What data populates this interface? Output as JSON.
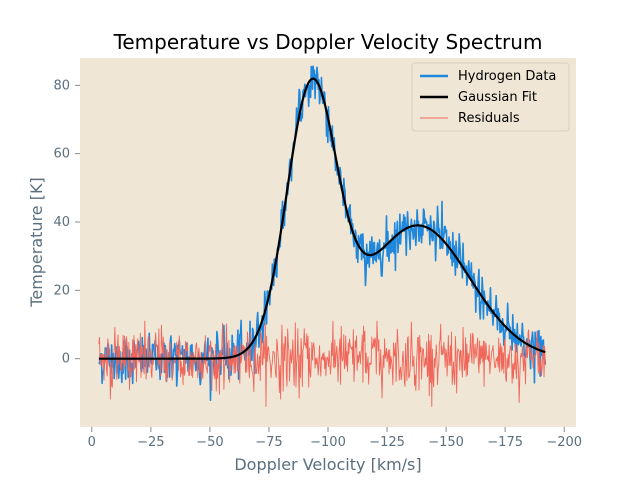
{
  "chart_data": {
    "type": "line",
    "title": "Temperature vs Doppler Velocity Spectrum",
    "xlabel": "Doppler Velocity [km/s]",
    "ylabel": "Temperature [K]",
    "x_axis_inverted": true,
    "xlim": [
      5,
      -205
    ],
    "ylim": [
      -20,
      88
    ],
    "x_ticks": [
      0,
      -25,
      -50,
      -75,
      -100,
      -125,
      -150,
      -175,
      -200
    ],
    "x_tick_labels": [
      "0",
      "−25",
      "−50",
      "−75",
      "−100",
      "−125",
      "−150",
      "−175",
      "−200"
    ],
    "y_ticks": [
      0,
      20,
      40,
      60,
      80
    ],
    "y_tick_labels": [
      "0",
      "20",
      "40",
      "60",
      "80"
    ],
    "x_range": [
      -3,
      -192
    ],
    "background_color": "#efe6d5",
    "grid": false,
    "legend_position": "upper right",
    "series": [
      {
        "name": "Hydrogen Data",
        "style": "noisy-line",
        "color": "#1f88dc",
        "noise_amplitude_K": 3.5,
        "model": "data = fitted two-gaussian profile + noise"
      },
      {
        "name": "Gaussian Fit",
        "style": "line",
        "color": "#000000",
        "components": [
          {
            "amplitude_K": 77,
            "center_kms": -93,
            "sigma_kms": 10.5
          },
          {
            "amplitude_K": 39,
            "center_kms": -138,
            "sigma_kms": 22
          }
        ],
        "peak_points": [
          {
            "x": -94,
            "y": 78
          },
          {
            "x": -116,
            "y": 28
          },
          {
            "x": -137,
            "y": 39.5
          }
        ]
      },
      {
        "name": "Residuals",
        "style": "thin-line",
        "color": "#f0665a",
        "noise_amplitude_K": 4.5,
        "range_K": [
          -14,
          11
        ]
      }
    ]
  }
}
